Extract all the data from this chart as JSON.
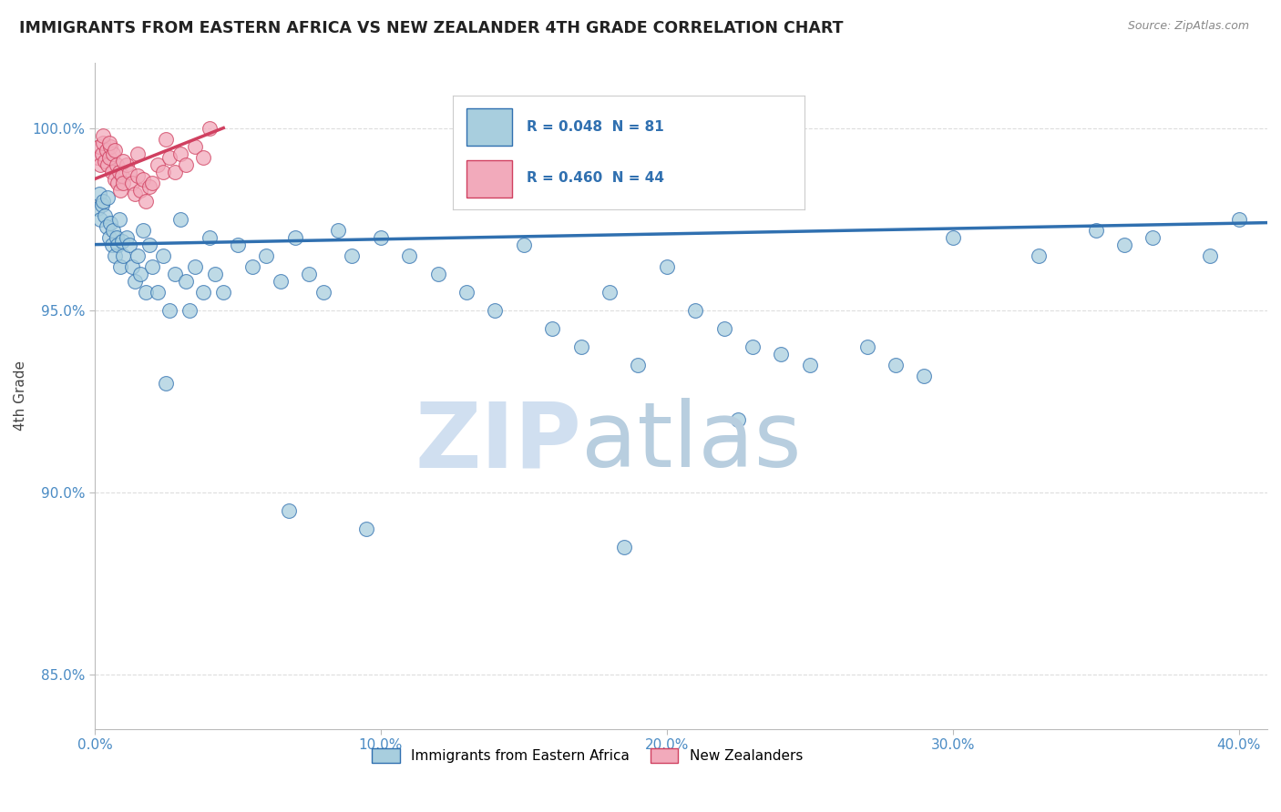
{
  "title": "IMMIGRANTS FROM EASTERN AFRICA VS NEW ZEALANDER 4TH GRADE CORRELATION CHART",
  "source": "Source: ZipAtlas.com",
  "ylabel": "4th Grade",
  "x_tick_labels": [
    "0.0%",
    "10.0%",
    "20.0%",
    "30.0%",
    "40.0%"
  ],
  "x_tick_values": [
    0.0,
    10.0,
    20.0,
    30.0,
    40.0
  ],
  "y_tick_labels": [
    "85.0%",
    "90.0%",
    "95.0%",
    "100.0%"
  ],
  "y_tick_values": [
    85.0,
    90.0,
    95.0,
    100.0
  ],
  "xlim": [
    0.0,
    41.0
  ],
  "ylim": [
    83.5,
    101.8
  ],
  "legend_label_blue": "Immigrants from Eastern Africa",
  "legend_label_pink": "New Zealanders",
  "R_blue": 0.048,
  "N_blue": 81,
  "R_pink": 0.46,
  "N_pink": 44,
  "blue_color": "#A8CEDE",
  "pink_color": "#F2AABB",
  "blue_line_color": "#3070B0",
  "pink_line_color": "#D04060",
  "title_color": "#222222",
  "axis_label_color": "#444444",
  "tick_label_color": "#4A8BC4",
  "grid_color": "#DDDDDD",
  "source_color": "#888888",
  "watermark_zip_color": "#D0DFF0",
  "watermark_atlas_color": "#B8CEDF",
  "blue_scatter_x": [
    0.1,
    0.15,
    0.2,
    0.25,
    0.3,
    0.35,
    0.4,
    0.45,
    0.5,
    0.55,
    0.6,
    0.65,
    0.7,
    0.75,
    0.8,
    0.85,
    0.9,
    0.95,
    1.0,
    1.1,
    1.2,
    1.3,
    1.4,
    1.5,
    1.6,
    1.7,
    1.8,
    1.9,
    2.0,
    2.2,
    2.4,
    2.6,
    2.8,
    3.0,
    3.2,
    3.5,
    3.8,
    4.0,
    4.5,
    5.0,
    5.5,
    6.0,
    6.5,
    7.0,
    7.5,
    8.0,
    8.5,
    9.0,
    10.0,
    11.0,
    12.0,
    13.0,
    14.0,
    15.0,
    16.0,
    17.0,
    18.0,
    19.0,
    20.0,
    21.0,
    22.0,
    23.0,
    24.0,
    25.0,
    27.0,
    28.0,
    29.0,
    30.0,
    33.0,
    35.0,
    36.0,
    37.0,
    39.0,
    40.0,
    2.5,
    3.3,
    4.2,
    6.8,
    9.5,
    18.5,
    22.5
  ],
  "blue_scatter_y": [
    97.8,
    98.2,
    97.5,
    97.9,
    98.0,
    97.6,
    97.3,
    98.1,
    97.0,
    97.4,
    96.8,
    97.2,
    96.5,
    97.0,
    96.8,
    97.5,
    96.2,
    96.9,
    96.5,
    97.0,
    96.8,
    96.2,
    95.8,
    96.5,
    96.0,
    97.2,
    95.5,
    96.8,
    96.2,
    95.5,
    96.5,
    95.0,
    96.0,
    97.5,
    95.8,
    96.2,
    95.5,
    97.0,
    95.5,
    96.8,
    96.2,
    96.5,
    95.8,
    97.0,
    96.0,
    95.5,
    97.2,
    96.5,
    97.0,
    96.5,
    96.0,
    95.5,
    95.0,
    96.8,
    94.5,
    94.0,
    95.5,
    93.5,
    96.2,
    95.0,
    94.5,
    94.0,
    93.8,
    93.5,
    94.0,
    93.5,
    93.2,
    97.0,
    96.5,
    97.2,
    96.8,
    97.0,
    96.5,
    97.5,
    93.0,
    95.0,
    96.0,
    89.5,
    89.0,
    88.5,
    92.0
  ],
  "pink_scatter_x": [
    0.1,
    0.15,
    0.2,
    0.25,
    0.3,
    0.35,
    0.4,
    0.45,
    0.5,
    0.55,
    0.6,
    0.65,
    0.7,
    0.75,
    0.8,
    0.85,
    0.9,
    0.95,
    1.0,
    1.1,
    1.2,
    1.3,
    1.4,
    1.5,
    1.6,
    1.7,
    1.8,
    1.9,
    2.0,
    2.2,
    2.4,
    2.6,
    2.8,
    3.0,
    3.2,
    3.5,
    3.8,
    0.3,
    0.5,
    0.7,
    1.0,
    1.5,
    2.5,
    4.0
  ],
  "pink_scatter_y": [
    99.2,
    99.5,
    99.0,
    99.3,
    99.6,
    99.1,
    99.4,
    99.0,
    99.2,
    99.5,
    98.8,
    99.3,
    98.6,
    99.0,
    98.5,
    98.8,
    98.3,
    98.7,
    98.5,
    99.0,
    98.8,
    98.5,
    98.2,
    98.7,
    98.3,
    98.6,
    98.0,
    98.4,
    98.5,
    99.0,
    98.8,
    99.2,
    98.8,
    99.3,
    99.0,
    99.5,
    99.2,
    99.8,
    99.6,
    99.4,
    99.1,
    99.3,
    99.7,
    100.0
  ],
  "blue_trendline_x": [
    0.0,
    41.0
  ],
  "blue_trendline_y": [
    96.8,
    97.4
  ],
  "pink_trendline_x": [
    0.0,
    4.5
  ],
  "pink_trendline_y": [
    98.6,
    100.0
  ]
}
